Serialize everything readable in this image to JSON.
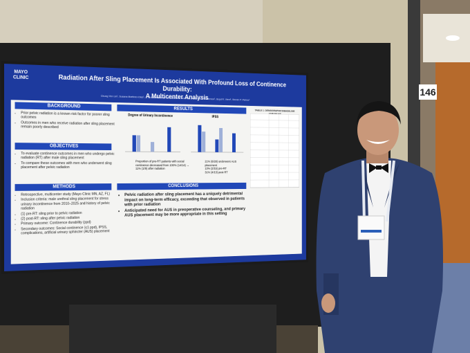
{
  "poster": {
    "logo": [
      "MAYO",
      "CLINIC"
    ],
    "title": "Radiation After Sling Placement Is Associated With Profound Loss of Continence Durability:",
    "subtitle": "A Multicenter Analysis",
    "authors": "Chung Yen Lin¹, Susana Martinez-Diaz¹, J. Nicholas Warner¹, Elizabeth H. Bearrick¹, Katherine T. Anderson¹, Boyd R. Viers¹, Steven P. Petrou¹",
    "background": {
      "heading": "BACKGROUND",
      "bullets": [
        "Prior pelvic radiation is a known risk factor for poorer sling outcomes",
        "Outcomes in men who receive radiation after sling placement remain poorly described"
      ]
    },
    "objectives": {
      "heading": "OBJECTIVES",
      "bullets": [
        "To evaluate continence outcomes in men who undergo pelvic radiation (RT) after male sling placement",
        "To compare these outcomes with men who underwent sling placement after pelvic radiation"
      ]
    },
    "methods": {
      "heading": "METHODS",
      "bullets": [
        "Retrospective, multicenter study (Mayo Clinic MN, AZ, FL)",
        "Inclusion criteria: male urethral sling placement for stress urinary incontinence from 2010–2025 and history of pelvic radiation",
        "(1) pre-RT: sling prior to pelvic radiation",
        "(2) post-RT: sling after pelvic radiation",
        "Primary outcome: Continence durability (ppd)",
        "Secondary outcomes: Social continence (≤1 ppd), IPSS, complications, artificial urinary sphincter (AUS) placement"
      ]
    },
    "results": {
      "heading": "RESULTS",
      "chart_titles": [
        "Degree of Urinary Incontinence",
        "IPSS"
      ],
      "notes": [
        "Proportion of pre-RT patients with social continence decreased from 100% (14/14) → 11% (1/9) after radiation",
        "21% (6/28) underwent AUS placement",
        "13% (2/15) pre-RT",
        "31% (4/13) post-RT"
      ]
    },
    "table_title": "TABLE 1: DEMOGRAPHICS/BASELINE VARIABLES",
    "conclusions": {
      "heading": "CONCLUSIONS",
      "bullets": [
        "Pelvic radiation after sling placement has a uniquely detrimental impact on long-term efficacy, exceeding that observed in patients with prior radiation",
        "Anticipated need for AUS in preoperative counseling, and primary AUS placement may be more appropriate in this setting"
      ]
    }
  },
  "booth_sign": "146"
}
